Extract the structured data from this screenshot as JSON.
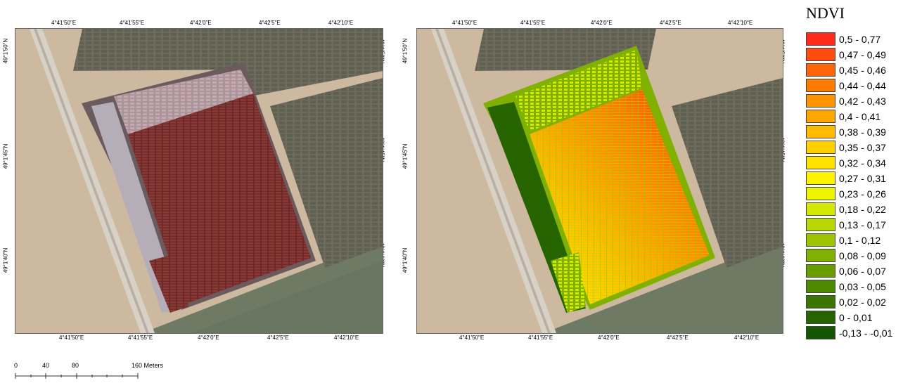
{
  "left_map": {
    "top_ticks": [
      "4°41'50\"E",
      "4°41'55\"E",
      "4°42'0\"E",
      "4°42'5\"E",
      "4°42'10\"E"
    ],
    "bottom_ticks": [
      "4°41'50\"E",
      "4°41'55\"E",
      "4°42'0\"E",
      "4°42'5\"E",
      "4°42'10\"E"
    ],
    "left_ticks": [
      "49°1'50\"N",
      "49°1'45\"N",
      "49°1'40\"N"
    ],
    "right_ticks": [
      "49°1'50\"N",
      "49°1'45\"N",
      "49°1'40\"N"
    ]
  },
  "right_map": {
    "top_ticks": [
      "4°41'50\"E",
      "4°41'55\"E",
      "4°42'0\"E",
      "4°42'5\"E",
      "4°42'10\"E"
    ],
    "bottom_ticks": [
      "4°41'50\"E",
      "4°41'55\"E",
      "4°42'0\"E",
      "4°42'5\"E",
      "4°42'10\"E"
    ],
    "left_ticks": [
      "49°1'50\"N",
      "49°1'45\"N",
      "49°1'40\"N"
    ],
    "right_ticks": [
      "49°1'50\"N",
      "49°1'45\"N",
      "49°1'40\"N"
    ]
  },
  "legend": {
    "title": "NDVI",
    "classes": [
      {
        "label": "0,5 - 0,77",
        "color": "#ff2a1a"
      },
      {
        "label": "0,47 - 0,49",
        "color": "#ff4a10"
      },
      {
        "label": "0,45 - 0,46",
        "color": "#ff6308"
      },
      {
        "label": "0,44 - 0,44",
        "color": "#ff7b00"
      },
      {
        "label": "0,42 - 0,43",
        "color": "#ff9300"
      },
      {
        "label": "0,4 - 0,41",
        "color": "#ffa600"
      },
      {
        "label": "0,38 - 0,39",
        "color": "#ffbb00"
      },
      {
        "label": "0,35 - 0,37",
        "color": "#ffcf00"
      },
      {
        "label": "0,32 - 0,34",
        "color": "#ffe200"
      },
      {
        "label": "0,27 - 0,31",
        "color": "#fff300"
      },
      {
        "label": "0,23 - 0,26",
        "color": "#eef500"
      },
      {
        "label": "0,18 - 0,22",
        "color": "#d4e800"
      },
      {
        "label": "0,13 - 0,17",
        "color": "#b8d800"
      },
      {
        "label": "0,1 - 0,12",
        "color": "#9cc400"
      },
      {
        "label": "0,08 - 0,09",
        "color": "#80b000"
      },
      {
        "label": "0,06 - 0,07",
        "color": "#679d00"
      },
      {
        "label": "0,03 - 0,05",
        "color": "#4f8900"
      },
      {
        "label": "0,02 - 0,02",
        "color": "#3a7500"
      },
      {
        "label": "0 - 0,01",
        "color": "#266400"
      },
      {
        "label": "-0,13 - -0,01",
        "color": "#145500"
      }
    ]
  },
  "scale_bar": {
    "labels": [
      "0",
      "40",
      "80",
      "160 Meters"
    ]
  }
}
